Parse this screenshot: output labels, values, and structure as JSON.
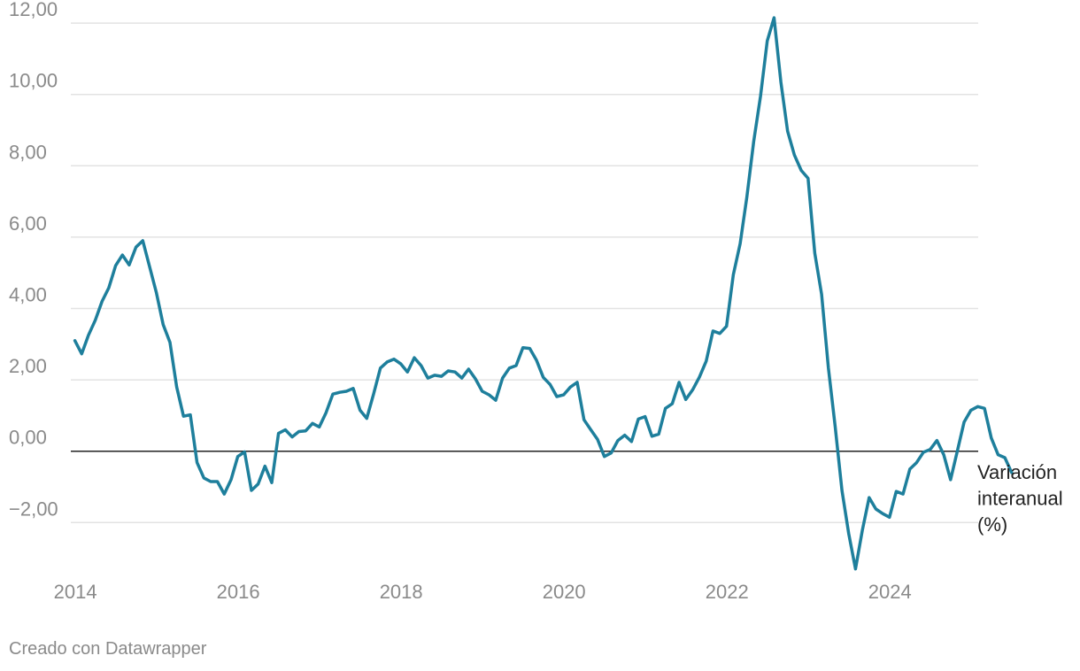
{
  "chart_data": {
    "type": "line",
    "title": "",
    "xlabel": "",
    "ylabel": "",
    "x_range": [
      2014,
      2025.5
    ],
    "xlim": [
      2013.95,
      2025.85
    ],
    "ylim": [
      -3.3,
      12.1
    ],
    "y_ticks": [
      -2,
      0,
      2,
      4,
      6,
      8,
      10,
      12
    ],
    "y_tick_labels": [
      "−2,00",
      "0,00",
      "2,00",
      "4,00",
      "6,00",
      "8,00",
      "10,00",
      "12,00"
    ],
    "x_ticks": [
      2014,
      2016,
      2018,
      2020,
      2022,
      2024
    ],
    "x_tick_labels": [
      "2014",
      "2016",
      "2018",
      "2020",
      "2022",
      "2024"
    ],
    "grid": true,
    "zero_line": true,
    "colors": {
      "line": "#1e7f9c",
      "grid": "#e3e3e3",
      "zero": "#222222",
      "tick_text": "#8a8a8a"
    },
    "series": [
      {
        "name": "Variación interanual (%)",
        "label_lines": [
          "Variación",
          "interanual",
          "(%)"
        ],
        "values": [
          3.1,
          2.73,
          3.25,
          3.67,
          4.2,
          4.58,
          5.2,
          5.5,
          5.22,
          5.72,
          5.9,
          5.18,
          4.45,
          3.55,
          3.05,
          1.8,
          0.98,
          1.02,
          -0.32,
          -0.75,
          -0.85,
          -0.85,
          -1.2,
          -0.8,
          -0.15,
          -0.02,
          -1.1,
          -0.92,
          -0.42,
          -0.88,
          0.5,
          0.6,
          0.4,
          0.55,
          0.57,
          0.78,
          0.68,
          1.08,
          1.6,
          1.65,
          1.68,
          1.76,
          1.15,
          0.92,
          1.6,
          2.33,
          2.5,
          2.58,
          2.45,
          2.22,
          2.62,
          2.4,
          2.05,
          2.13,
          2.1,
          2.25,
          2.22,
          2.05,
          2.3,
          2.03,
          1.68,
          1.58,
          1.43,
          2.05,
          2.33,
          2.4,
          2.9,
          2.88,
          2.55,
          2.07,
          1.87,
          1.53,
          1.58,
          1.8,
          1.93,
          0.88,
          0.6,
          0.33,
          -0.15,
          -0.05,
          0.3,
          0.45,
          0.27,
          0.9,
          0.97,
          0.42,
          0.48,
          1.2,
          1.33,
          1.93,
          1.45,
          1.72,
          2.08,
          2.52,
          3.37,
          3.3,
          3.5,
          4.95,
          5.82,
          7.13,
          8.68,
          9.95,
          11.5,
          12.15,
          10.35,
          8.97,
          8.3,
          7.87,
          7.65,
          5.55,
          4.4,
          2.33,
          0.7,
          -1.1,
          -2.32,
          -3.3,
          -2.22,
          -1.3,
          -1.62,
          -1.75,
          -1.85,
          -1.13,
          -1.2,
          -0.5,
          -0.32,
          -0.03,
          0.05,
          0.3,
          -0.1,
          -0.8,
          0.0,
          0.82,
          1.15,
          1.25,
          1.2,
          0.37,
          -0.1,
          -0.18,
          -0.6
        ]
      }
    ]
  },
  "footer": {
    "credit": "Creado con Datawrapper"
  }
}
